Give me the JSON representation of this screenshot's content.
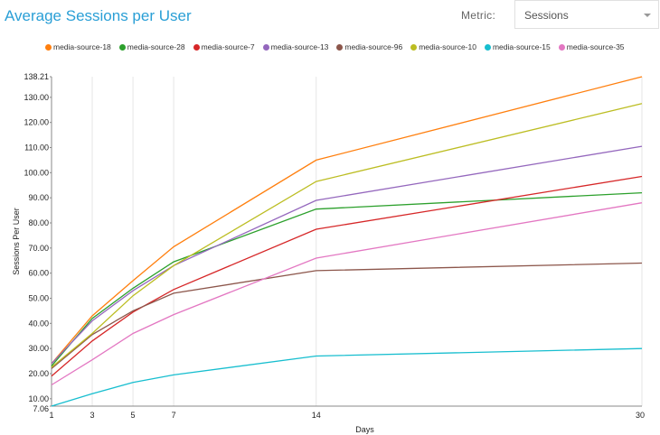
{
  "header": {
    "title": "Average Sessions per User",
    "metric_label": "Metric:",
    "metric_value": "Sessions"
  },
  "chart_data": {
    "type": "line",
    "title": "Average Sessions per User",
    "xlabel": "Days",
    "ylabel": "Sessions Per User",
    "x": [
      1,
      3,
      5,
      7,
      14,
      30
    ],
    "x_ticks": [
      "1",
      "3",
      "5",
      "7",
      "14",
      "30"
    ],
    "ylim": [
      7.06,
      138.21
    ],
    "y_ticks": [
      "7.06",
      "10.00",
      "20.00",
      "30.00",
      "40.00",
      "50.00",
      "60.00",
      "70.00",
      "80.00",
      "90.00",
      "100.00",
      "110.00",
      "120.00",
      "130.00",
      "138.21"
    ],
    "legend_position": "top",
    "series": [
      {
        "name": "media-source-18",
        "color": "#ff7f0e",
        "values": [
          24,
          43,
          57,
          70.5,
          105,
          138.2
        ]
      },
      {
        "name": "media-source-28",
        "color": "#2ca02c",
        "values": [
          23,
          42,
          54,
          64.5,
          85.5,
          92
        ]
      },
      {
        "name": "media-source-7",
        "color": "#d62728",
        "values": [
          19,
          33,
          44.5,
          53.5,
          77.5,
          98.5
        ]
      },
      {
        "name": "media-source-13",
        "color": "#9467bd",
        "values": [
          24,
          41,
          53,
          63,
          89,
          110.5
        ]
      },
      {
        "name": "media-source-96",
        "color": "#8c564b",
        "values": [
          22,
          35.5,
          45,
          52,
          61,
          64
        ]
      },
      {
        "name": "media-source-10",
        "color": "#bcbd22",
        "values": [
          22.5,
          36,
          51,
          63,
          96.5,
          127.5
        ]
      },
      {
        "name": "media-source-15",
        "color": "#17becf",
        "values": [
          7.06,
          12,
          16.5,
          19.5,
          27,
          30
        ]
      },
      {
        "name": "media-source-35",
        "color": "#e377c2",
        "values": [
          15.5,
          25.5,
          36,
          43.5,
          66,
          88
        ]
      }
    ]
  }
}
